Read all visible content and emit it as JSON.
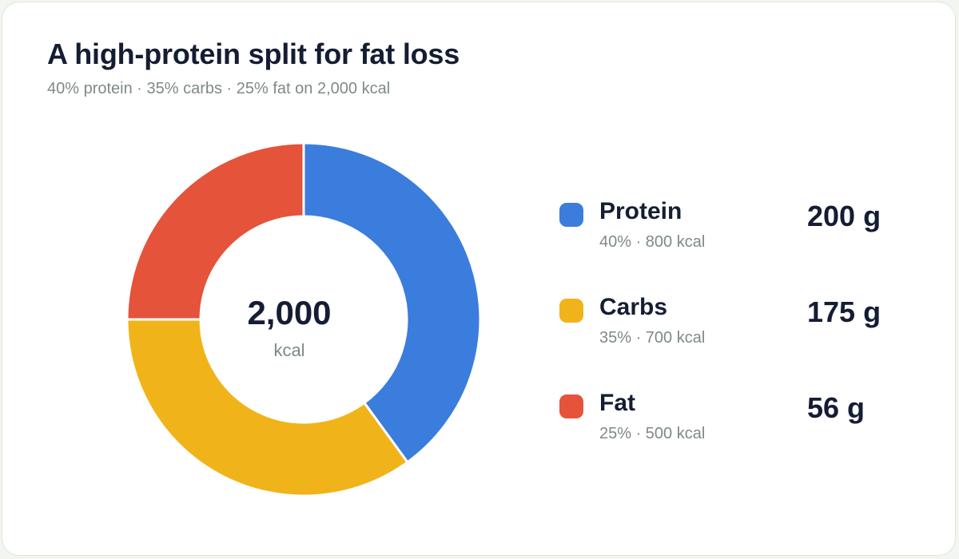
{
  "chart_data": {
    "type": "pie",
    "variant": "donut",
    "title": "A high-protein split for fat loss",
    "subtitle": "40% protein · 35% carbs · 25% fat on 2,000 kcal",
    "center": {
      "value": "2,000",
      "unit": "kcal"
    },
    "series": [
      {
        "name": "Protein",
        "percent": 40,
        "kcal": 800,
        "detail": "40% · 800 kcal",
        "grams": "200 g",
        "color": "#3b7ddd"
      },
      {
        "name": "Carbs",
        "percent": 35,
        "kcal": 700,
        "detail": "35% · 700 kcal",
        "grams": "175 g",
        "color": "#f0b41a"
      },
      {
        "name": "Fat",
        "percent": 25,
        "kcal": 500,
        "detail": "25% · 500 kcal",
        "grams": "56 g",
        "color": "#e4533a"
      }
    ],
    "legend_position": "right"
  }
}
